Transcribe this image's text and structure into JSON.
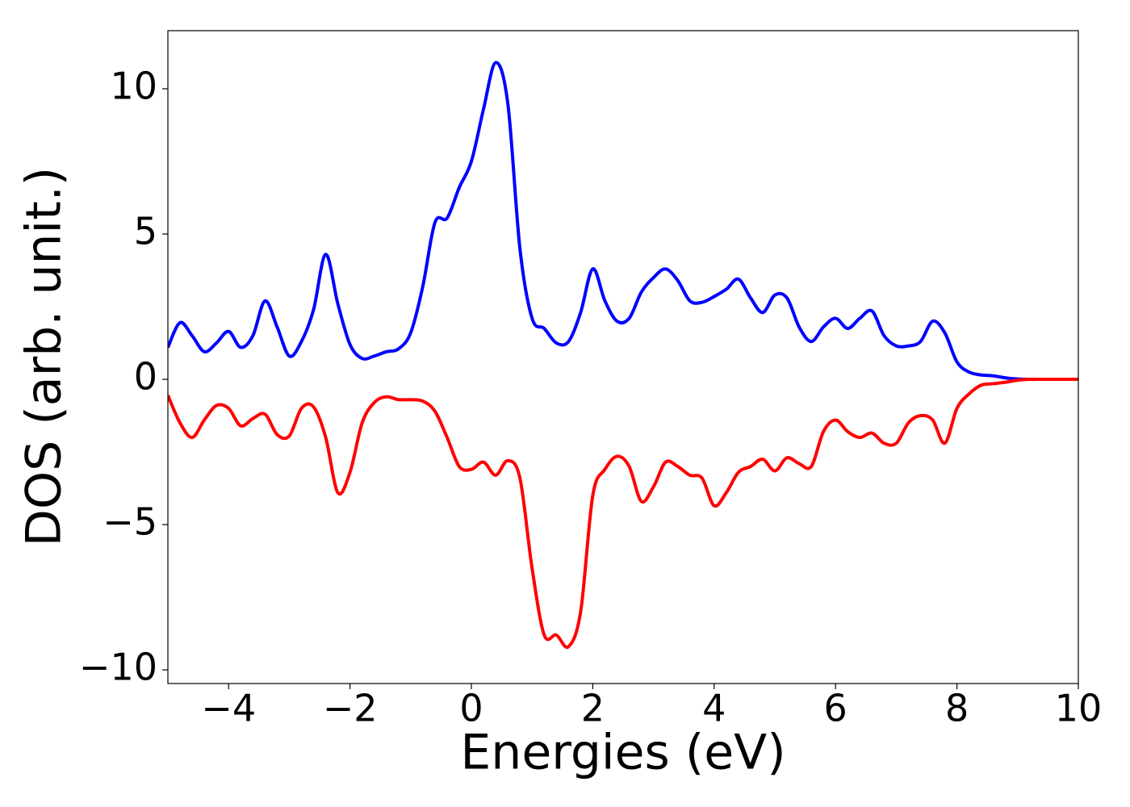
{
  "chart_data": {
    "type": "line",
    "xlabel": "Energies (eV)",
    "ylabel": "DOS (arb. unit.)",
    "x": [
      -5,
      -4.8,
      -4.6,
      -4.4,
      -4.2,
      -4,
      -3.8,
      -3.6,
      -3.4,
      -3.2,
      -3,
      -2.8,
      -2.6,
      -2.4,
      -2.2,
      -2,
      -1.8,
      -1.6,
      -1.4,
      -1.2,
      -1,
      -0.8,
      -0.6,
      -0.4,
      -0.2,
      0,
      0.2,
      0.4,
      0.6,
      0.8,
      1,
      1.2,
      1.4,
      1.6,
      1.8,
      2,
      2.2,
      2.4,
      2.6,
      2.8,
      3,
      3.2,
      3.4,
      3.6,
      3.8,
      4,
      4.2,
      4.4,
      4.6,
      4.8,
      5,
      5.2,
      5.4,
      5.6,
      5.8,
      6,
      6.2,
      6.4,
      6.6,
      6.8,
      7,
      7.2,
      7.4,
      7.6,
      7.8,
      8,
      8.2,
      8.4,
      8.6,
      8.8,
      9,
      9.2,
      9.4,
      9.6,
      9.8,
      10
    ],
    "series": [
      {
        "color": "#0000ff",
        "values": [
          1.1,
          1.95,
          1.5,
          0.95,
          1.25,
          1.65,
          1.1,
          1.5,
          2.7,
          1.8,
          0.8,
          1.3,
          2.4,
          4.3,
          2.6,
          1.2,
          0.72,
          0.8,
          0.95,
          1.05,
          1.6,
          3.2,
          5.4,
          5.55,
          6.6,
          7.5,
          9.3,
          10.9,
          9.5,
          4.5,
          2.1,
          1.75,
          1.25,
          1.3,
          2.3,
          3.8,
          2.7,
          2.0,
          2.1,
          3.0,
          3.5,
          3.8,
          3.4,
          2.7,
          2.65,
          2.85,
          3.1,
          3.45,
          2.8,
          2.3,
          2.9,
          2.8,
          1.8,
          1.3,
          1.8,
          2.1,
          1.75,
          2.1,
          2.35,
          1.5,
          1.15,
          1.15,
          1.3,
          2.0,
          1.6,
          0.6,
          0.25,
          0.15,
          0.12,
          0.05,
          0.01,
          0,
          0,
          0,
          0,
          0
        ]
      },
      {
        "color": "#ff0000",
        "values": [
          -0.55,
          -1.5,
          -2.0,
          -1.4,
          -0.9,
          -1.0,
          -1.6,
          -1.35,
          -1.2,
          -1.9,
          -1.95,
          -1.0,
          -0.95,
          -2.0,
          -3.9,
          -3.2,
          -1.5,
          -0.8,
          -0.6,
          -0.7,
          -0.7,
          -0.75,
          -1.1,
          -2.0,
          -3.0,
          -3.1,
          -2.85,
          -3.3,
          -2.8,
          -3.4,
          -6.5,
          -8.8,
          -8.8,
          -9.2,
          -8.0,
          -4.0,
          -3.1,
          -2.65,
          -3.0,
          -4.2,
          -3.7,
          -2.85,
          -3.0,
          -3.3,
          -3.4,
          -4.35,
          -3.9,
          -3.2,
          -3.0,
          -2.75,
          -3.15,
          -2.7,
          -2.9,
          -3.0,
          -1.8,
          -1.4,
          -1.8,
          -2.0,
          -1.85,
          -2.2,
          -2.2,
          -1.5,
          -1.25,
          -1.4,
          -2.2,
          -1.0,
          -0.5,
          -0.2,
          -0.15,
          -0.1,
          -0.03,
          0,
          0,
          0,
          0,
          0
        ]
      }
    ],
    "xlim": [
      -5,
      10
    ],
    "ylim": [
      -10.47,
      12.0
    ],
    "xticks": [
      {
        "value": -4,
        "label": "−4"
      },
      {
        "value": -2,
        "label": "−2"
      },
      0,
      2,
      4,
      6,
      8,
      10
    ],
    "yticks": [
      {
        "value": -10,
        "label": "−10"
      },
      {
        "value": -5,
        "label": "−5"
      },
      0,
      5,
      10
    ],
    "grid": false
  }
}
